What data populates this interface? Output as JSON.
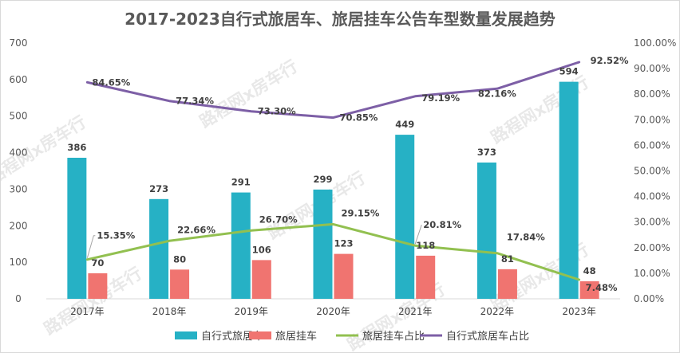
{
  "chart_data": {
    "type": "bar",
    "title": "2017-2023自行式旅居车、旅居挂车公告车型数量发展趋势",
    "categories": [
      "2017年",
      "2018年",
      "2019年",
      "2020年",
      "2021年",
      "2022年",
      "2023年"
    ],
    "series": [
      {
        "name": "自行式旅居车",
        "type": "bar",
        "axis": "left",
        "color": "#26b1c5",
        "values": [
          386,
          273,
          291,
          299,
          449,
          373,
          594
        ],
        "labels": [
          "386",
          "273",
          "291",
          "299",
          "449",
          "373",
          "594"
        ]
      },
      {
        "name": "旅居挂车",
        "type": "bar",
        "axis": "left",
        "color": "#f07470",
        "values": [
          70,
          80,
          106,
          123,
          118,
          81,
          48
        ],
        "labels": [
          "70",
          "80",
          "106",
          "123",
          "118",
          "81",
          "48"
        ]
      },
      {
        "name": "旅居挂车占比",
        "type": "line",
        "axis": "right",
        "color": "#92c050",
        "values": [
          15.35,
          22.66,
          26.7,
          29.15,
          20.81,
          17.84,
          7.48
        ],
        "labels": [
          "15.35%",
          "22.66%",
          "26.70%",
          "29.15%",
          "20.81%",
          "17.84%",
          "7.48%"
        ]
      },
      {
        "name": "自行式旅居车占比",
        "type": "line",
        "axis": "right",
        "color": "#7d5fa6",
        "values": [
          84.65,
          77.34,
          73.3,
          70.85,
          79.19,
          82.16,
          92.52
        ],
        "labels": [
          "84.65%",
          "77.34%",
          "73.30%",
          "70.85%",
          "79.19%",
          "82.16%",
          "92.52%"
        ]
      }
    ],
    "ylim": [
      0,
      700
    ],
    "y_ticks": [
      "0",
      "100",
      "200",
      "300",
      "400",
      "500",
      "600",
      "700"
    ],
    "y2lim": [
      0,
      100
    ],
    "y2_ticks": [
      "0.00%",
      "10.00%",
      "20.00%",
      "30.00%",
      "40.00%",
      "50.00%",
      "60.00%",
      "70.00%",
      "80.00%",
      "90.00%",
      "100.00%"
    ],
    "grid": false,
    "legend": "bottom"
  },
  "watermark": "路程网x房车行"
}
